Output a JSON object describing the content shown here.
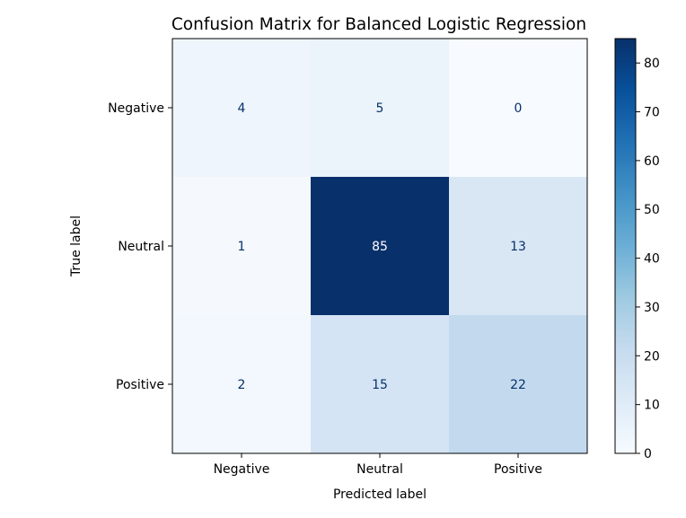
{
  "chart_data": {
    "type": "heatmap",
    "title": "Confusion Matrix for Balanced Logistic Regression",
    "xlabel": "Predicted label",
    "ylabel": "True label",
    "x_categories": [
      "Negative",
      "Neutral",
      "Positive"
    ],
    "y_categories": [
      "Negative",
      "Neutral",
      "Positive"
    ],
    "values": [
      [
        4,
        5,
        0
      ],
      [
        1,
        85,
        13
      ],
      [
        2,
        15,
        22
      ]
    ],
    "colormap": "Blues",
    "colorbar": {
      "min": 0,
      "max": 85,
      "ticks": [
        0,
        10,
        20,
        30,
        40,
        50,
        60,
        70,
        80
      ]
    },
    "colors": {
      "light_end": "#f7fbff",
      "dark_end": "#08306b",
      "dark_text": "#08306b",
      "light_text": "#ffffff"
    }
  }
}
